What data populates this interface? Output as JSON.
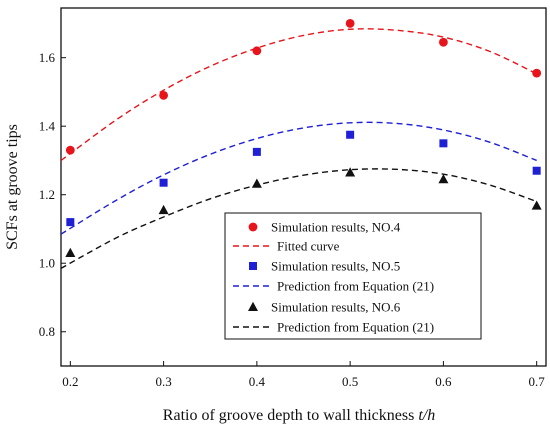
{
  "chart_data": {
    "type": "scatter",
    "xlabel_main": "Ratio of groove depth to wall thickness ",
    "xlabel_var": "t/h",
    "ylabel": "SCFs at groove tips",
    "xlim": [
      0.19,
      0.71
    ],
    "ylim": [
      0.7,
      1.745
    ],
    "xticks": [
      "0.2",
      "0.3",
      "0.4",
      "0.5",
      "0.6",
      "0.7"
    ],
    "yticks": [
      "0.8",
      "1.0",
      "1.2",
      "1.4",
      "1.6"
    ],
    "xtick_values": [
      0.2,
      0.3,
      0.4,
      0.5,
      0.6,
      0.7
    ],
    "ytick_values": [
      0.8,
      1.0,
      1.2,
      1.4,
      1.6
    ],
    "grid": false,
    "legend_position": "lower-right",
    "series": [
      {
        "name": "Simulation results, NO.4",
        "kind": "points",
        "marker": "circle",
        "color": "#e8141b",
        "x": [
          0.2,
          0.3,
          0.4,
          0.5,
          0.6,
          0.7
        ],
        "y": [
          1.33,
          1.49,
          1.62,
          1.7,
          1.645,
          1.555
        ]
      },
      {
        "name": "Fitted curve",
        "kind": "curve",
        "color": "#e8141b",
        "x": [
          0.19,
          0.25,
          0.3,
          0.35,
          0.4,
          0.45,
          0.5,
          0.55,
          0.6,
          0.65,
          0.7
        ],
        "y": [
          1.3,
          1.42,
          1.505,
          1.575,
          1.628,
          1.665,
          1.683,
          1.68,
          1.66,
          1.618,
          1.553
        ]
      },
      {
        "name": "Simulation results, NO.5",
        "kind": "points",
        "marker": "square",
        "color": "#1f1fd6",
        "x": [
          0.2,
          0.3,
          0.4,
          0.5,
          0.6,
          0.7
        ],
        "y": [
          1.12,
          1.235,
          1.325,
          1.375,
          1.35,
          1.27
        ]
      },
      {
        "name": "Prediction from Equation (21)",
        "kind": "curve",
        "color": "#1f1fd6",
        "x": [
          0.19,
          0.25,
          0.3,
          0.35,
          0.4,
          0.45,
          0.5,
          0.55,
          0.6,
          0.65,
          0.7
        ],
        "y": [
          1.085,
          1.185,
          1.258,
          1.318,
          1.364,
          1.395,
          1.41,
          1.408,
          1.389,
          1.353,
          1.3
        ]
      },
      {
        "name": "Simulation results, NO.6",
        "kind": "points",
        "marker": "triangle",
        "color": "#111111",
        "x": [
          0.2,
          0.3,
          0.4,
          0.5,
          0.6,
          0.7
        ],
        "y": [
          1.03,
          1.155,
          1.232,
          1.265,
          1.245,
          1.168
        ]
      },
      {
        "name": "Prediction from Equation (21)",
        "kind": "curve",
        "color": "#111111",
        "x": [
          0.19,
          0.25,
          0.3,
          0.35,
          0.4,
          0.45,
          0.5,
          0.55,
          0.6,
          0.65,
          0.7
        ],
        "y": [
          0.985,
          1.075,
          1.135,
          1.188,
          1.228,
          1.257,
          1.273,
          1.274,
          1.26,
          1.228,
          1.18
        ]
      }
    ]
  }
}
